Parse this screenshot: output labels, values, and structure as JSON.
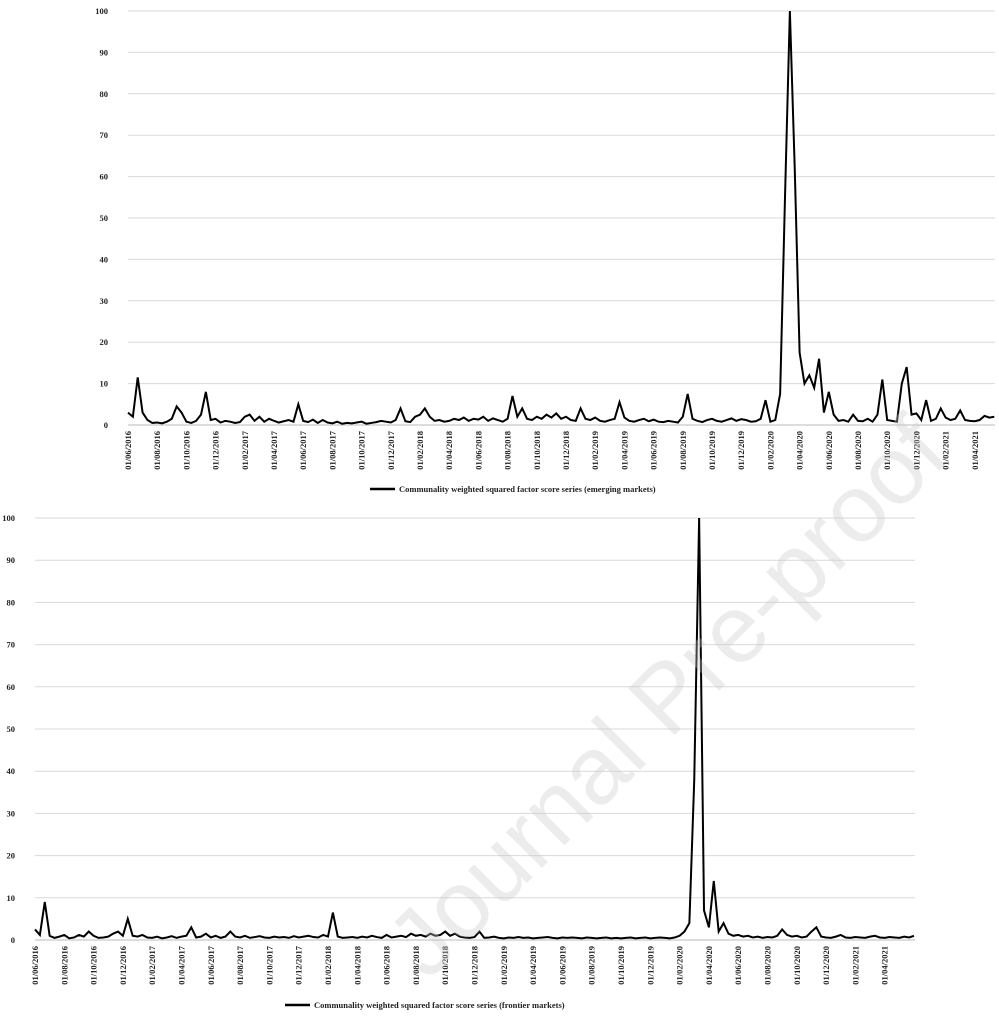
{
  "watermark": "Journal Pre-proof",
  "chart_data": [
    {
      "type": "line",
      "legend": "bottom",
      "grid": true,
      "ylim": [
        0,
        100
      ],
      "yticks": [
        0,
        10,
        20,
        30,
        40,
        50,
        60,
        70,
        80,
        90,
        100
      ],
      "categories": [
        "01/06/2016",
        null,
        null,
        null,
        null,
        null,
        "01/08/2016",
        null,
        null,
        null,
        null,
        null,
        "01/10/2016",
        null,
        null,
        null,
        null,
        null,
        "01/12/2016",
        null,
        null,
        null,
        null,
        null,
        "01/02/2017",
        null,
        null,
        null,
        null,
        null,
        "01/04/2017",
        null,
        null,
        null,
        null,
        null,
        "01/06/2017",
        null,
        null,
        null,
        null,
        null,
        "01/08/2017",
        null,
        null,
        null,
        null,
        null,
        "01/10/2017",
        null,
        null,
        null,
        null,
        null,
        "01/12/2017",
        null,
        null,
        null,
        null,
        null,
        "01/02/2018",
        null,
        null,
        null,
        null,
        null,
        "01/04/2018",
        null,
        null,
        null,
        null,
        null,
        "01/06/2018",
        null,
        null,
        null,
        null,
        null,
        "01/08/2018",
        null,
        null,
        null,
        null,
        null,
        "01/10/2018",
        null,
        null,
        null,
        null,
        null,
        "01/12/2018",
        null,
        null,
        null,
        null,
        null,
        "01/02/2019",
        null,
        null,
        null,
        null,
        null,
        "01/04/2019",
        null,
        null,
        null,
        null,
        null,
        "01/06/2019",
        null,
        null,
        null,
        null,
        null,
        "01/08/2019",
        null,
        null,
        null,
        null,
        null,
        "01/10/2019",
        null,
        null,
        null,
        null,
        null,
        "01/12/2019",
        null,
        null,
        null,
        null,
        null,
        "01/02/2020",
        null,
        null,
        null,
        null,
        null,
        "01/04/2020",
        null,
        null,
        null,
        null,
        null,
        "01/06/2020",
        null,
        null,
        null,
        null,
        null,
        "01/08/2020",
        null,
        null,
        null,
        null,
        null,
        "01/10/2020",
        null,
        null,
        null,
        null,
        null,
        "01/12/2020",
        null,
        null,
        null,
        null,
        null,
        "01/02/2021",
        null,
        null,
        null,
        null,
        null,
        "01/04/2021",
        null,
        null,
        null,
        null
      ],
      "series": [
        {
          "name": "Communality weighted squared factor score series (emerging markets)",
          "color": "#000000",
          "values": [
            3,
            2,
            11.5,
            3,
            1.2,
            0.5,
            0.6,
            0.4,
            0.8,
            1.5,
            4.5,
            3,
            0.8,
            0.5,
            1,
            2.5,
            8,
            1.2,
            1.5,
            0.6,
            1,
            0.8,
            0.5,
            0.7,
            2,
            2.5,
            1,
            2,
            0.8,
            1.5,
            1,
            0.6,
            0.9,
            1.2,
            0.8,
            5,
            1,
            0.7,
            1.3,
            0.5,
            1.2,
            0.6,
            0.4,
            0.8,
            0.3,
            0.5,
            0.4,
            0.6,
            0.8,
            0.3,
            0.5,
            0.7,
            1,
            0.8,
            0.6,
            1.2,
            4,
            0.9,
            0.7,
            2,
            2.5,
            4,
            2,
            1,
            1.2,
            0.8,
            1,
            1.5,
            1.2,
            1.8,
            1,
            1.5,
            1.3,
            2,
            1,
            1.6,
            1.2,
            0.8,
            1.5,
            7,
            2,
            4,
            1.5,
            1.2,
            2,
            1.5,
            2.5,
            1.8,
            2.8,
            1.5,
            2,
            1.2,
            1,
            4,
            1.5,
            1.2,
            1.8,
            1,
            0.8,
            1.2,
            1.5,
            5.5,
            1.8,
            1,
            0.8,
            1.2,
            1.5,
            0.9,
            1.3,
            0.8,
            0.7,
            1,
            0.8,
            0.6,
            2,
            7.5,
            1.5,
            1,
            0.7,
            1.2,
            1.5,
            1,
            0.8,
            1.2,
            1.6,
            1,
            1.4,
            1.2,
            0.8,
            0.9,
            1.5,
            6,
            0.8,
            1.2,
            7.5,
            55,
            100,
            62,
            17.5,
            10,
            12,
            9,
            16,
            3,
            8,
            2.5,
            1,
            1.2,
            0.8,
            2.5,
            1,
            0.9,
            1.5,
            0.8,
            2.5,
            11,
            1.2,
            1,
            0.8,
            10,
            14,
            2.5,
            2.8,
            1.2,
            6,
            1,
            1.5,
            4,
            1.8,
            1.2,
            1.5,
            3.5,
            1.2,
            1,
            0.9,
            1.2,
            2.2,
            1.8,
            2
          ]
        }
      ]
    },
    {
      "type": "line",
      "legend": "bottom",
      "grid": true,
      "ylim": [
        0,
        100
      ],
      "yticks": [
        0,
        10,
        20,
        30,
        40,
        50,
        60,
        70,
        80,
        90,
        100
      ],
      "categories": [
        "01/06/2016",
        null,
        null,
        null,
        null,
        null,
        "01/08/2016",
        null,
        null,
        null,
        null,
        null,
        "01/10/2016",
        null,
        null,
        null,
        null,
        null,
        "01/12/2016",
        null,
        null,
        null,
        null,
        null,
        "01/02/2017",
        null,
        null,
        null,
        null,
        null,
        "01/04/2017",
        null,
        null,
        null,
        null,
        null,
        "01/06/2017",
        null,
        null,
        null,
        null,
        null,
        "01/08/2017",
        null,
        null,
        null,
        null,
        null,
        "01/10/2017",
        null,
        null,
        null,
        null,
        null,
        "01/12/2017",
        null,
        null,
        null,
        null,
        null,
        "01/02/2018",
        null,
        null,
        null,
        null,
        null,
        "01/04/2018",
        null,
        null,
        null,
        null,
        null,
        "01/06/2018",
        null,
        null,
        null,
        null,
        null,
        "01/08/2018",
        null,
        null,
        null,
        null,
        null,
        "01/10/2018",
        null,
        null,
        null,
        null,
        null,
        "01/12/2018",
        null,
        null,
        null,
        null,
        null,
        "01/02/2019",
        null,
        null,
        null,
        null,
        null,
        "01/04/2019",
        null,
        null,
        null,
        null,
        null,
        "01/06/2019",
        null,
        null,
        null,
        null,
        null,
        "01/08/2019",
        null,
        null,
        null,
        null,
        null,
        "01/10/2019",
        null,
        null,
        null,
        null,
        null,
        "01/12/2019",
        null,
        null,
        null,
        null,
        null,
        "01/02/2020",
        null,
        null,
        null,
        null,
        null,
        "01/04/2020",
        null,
        null,
        null,
        null,
        null,
        "01/06/2020",
        null,
        null,
        null,
        null,
        null,
        "01/08/2020",
        null,
        null,
        null,
        null,
        null,
        "01/10/2020",
        null,
        null,
        null,
        null,
        null,
        "01/12/2020",
        null,
        null,
        null,
        null,
        null,
        "01/02/2021",
        null,
        null,
        null,
        null,
        null,
        "01/04/2021",
        null,
        null,
        null,
        null,
        null,
        null
      ],
      "series": [
        {
          "name": "Communality weighted squared factor score series (frontier markets)",
          "color": "#000000",
          "values": [
            2.5,
            1.2,
            9,
            1,
            0.5,
            0.8,
            1.2,
            0.4,
            0.6,
            1.2,
            0.8,
            2,
            1,
            0.5,
            0.6,
            0.8,
            1.5,
            2,
            1,
            5,
            1,
            0.8,
            1.2,
            0.6,
            0.5,
            0.8,
            0.4,
            0.6,
            0.9,
            0.5,
            0.8,
            1,
            3,
            0.6,
            0.8,
            1.5,
            0.6,
            1,
            0.5,
            0.8,
            2,
            0.8,
            0.6,
            1,
            0.5,
            0.7,
            0.9,
            0.6,
            0.5,
            0.8,
            0.6,
            0.7,
            0.5,
            0.9,
            0.6,
            0.8,
            1,
            0.7,
            0.6,
            1.2,
            0.8,
            6.5,
            0.8,
            0.5,
            0.6,
            0.7,
            0.5,
            0.8,
            0.6,
            1,
            0.7,
            0.5,
            1.2,
            0.6,
            0.8,
            1,
            0.7,
            1.5,
            1,
            1.2,
            0.8,
            1.5,
            1,
            1.2,
            2,
            1,
            1.5,
            0.8,
            0.6,
            0.5,
            0.7,
            2,
            0.5,
            0.6,
            0.8,
            0.5,
            0.4,
            0.6,
            0.5,
            0.7,
            0.5,
            0.6,
            0.4,
            0.5,
            0.6,
            0.7,
            0.5,
            0.4,
            0.6,
            0.5,
            0.6,
            0.5,
            0.4,
            0.6,
            0.5,
            0.4,
            0.5,
            0.6,
            0.4,
            0.5,
            0.4,
            0.5,
            0.6,
            0.4,
            0.5,
            0.6,
            0.4,
            0.5,
            0.6,
            0.5,
            0.4,
            0.6,
            1,
            2,
            4,
            38,
            100,
            7,
            3,
            14,
            2,
            4,
            1.5,
            1,
            1.2,
            0.8,
            1,
            0.6,
            0.8,
            0.5,
            0.7,
            0.6,
            1,
            2.5,
            1.2,
            0.8,
            1,
            0.6,
            0.8,
            2,
            3,
            0.8,
            0.6,
            0.5,
            0.8,
            1.2,
            0.6,
            0.5,
            0.7,
            0.6,
            0.5,
            0.8,
            1,
            0.6,
            0.5,
            0.7,
            0.6,
            0.5,
            0.8,
            0.6,
            1
          ]
        }
      ]
    }
  ]
}
